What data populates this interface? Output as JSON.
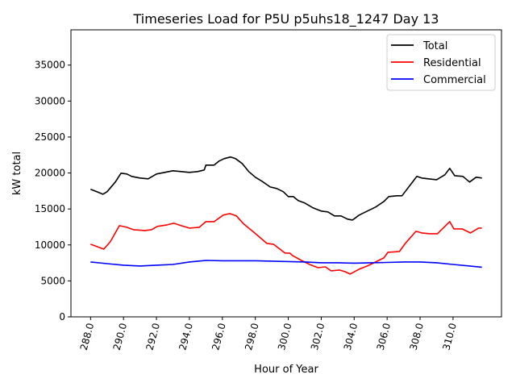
{
  "chart_data": {
    "type": "line",
    "title": "Timeseries Load for P5U p5uhs18_1247  Day 13",
    "xlabel": "Hour of Year",
    "ylabel": "kW total",
    "xlim": [
      286.81,
      312.94
    ],
    "ylim": [
      0,
      39900
    ],
    "grid": false,
    "legend_placement": "top-right",
    "xticks": [
      288,
      290,
      292,
      294,
      296,
      298,
      300,
      302,
      304,
      306,
      308,
      310
    ],
    "xtick_labels": [
      "288.0",
      "290.0",
      "292.0",
      "294.0",
      "296.0",
      "298.0",
      "300.0",
      "302.0",
      "304.0",
      "306.0",
      "308.0",
      "310.0"
    ],
    "yticks": [
      0,
      5000,
      10000,
      15000,
      20000,
      25000,
      30000,
      35000
    ],
    "ytick_labels": [
      "0",
      "5000",
      "10000",
      "15000",
      "20000",
      "25000",
      "30000",
      "35000"
    ],
    "series": [
      {
        "name": "Total",
        "color": "#000000",
        "x": [
          288,
          288.5,
          288.75,
          289,
          289.5,
          289.85,
          290.2,
          290.5,
          291,
          291.5,
          292,
          292.5,
          293,
          293.5,
          294,
          294.5,
          294.9,
          295,
          295.5,
          295.8,
          296.1,
          296.5,
          296.8,
          297.2,
          297.6,
          298,
          298.4,
          298.9,
          299.3,
          299.7,
          300,
          300.3,
          300.6,
          301,
          301.5,
          302,
          302.4,
          302.8,
          303.2,
          303.6,
          303.9,
          304.3,
          304.8,
          305.3,
          305.8,
          306.1,
          306.6,
          306.9,
          307.2,
          307.8,
          308.1,
          308.5,
          309,
          309.5,
          309.8,
          310.1,
          310.6,
          311,
          311.4,
          311.75
        ],
        "y": [
          17730,
          17280,
          17050,
          17390,
          18740,
          19970,
          19860,
          19520,
          19300,
          19190,
          19860,
          20080,
          20310,
          20200,
          20080,
          20200,
          20420,
          21090,
          21090,
          21650,
          21990,
          22220,
          21990,
          21320,
          20200,
          19410,
          18850,
          18060,
          17840,
          17390,
          16720,
          16720,
          16160,
          15820,
          15150,
          14700,
          14590,
          14030,
          14030,
          13580,
          13460,
          14140,
          14700,
          15260,
          16040,
          16720,
          16830,
          16830,
          17730,
          19520,
          19300,
          19190,
          19070,
          19750,
          20640,
          19630,
          19520,
          18740,
          19410,
          19300
        ]
      },
      {
        "name": "Residential",
        "color": "#ff0000",
        "x": [
          288,
          288.8,
          289.2,
          289.75,
          290.2,
          290.6,
          291.3,
          291.7,
          292.05,
          292.65,
          293.05,
          293.5,
          294,
          294.6,
          295,
          295.5,
          296.05,
          296.45,
          296.85,
          297.3,
          297.9,
          298.7,
          299.1,
          299.8,
          300.1,
          300.25,
          300.8,
          301.3,
          301.8,
          302.25,
          302.6,
          303.1,
          303.45,
          303.75,
          304.3,
          304.8,
          305.3,
          305.8,
          306.05,
          306.75,
          307.1,
          307.75,
          308.1,
          308.6,
          309.05,
          309.8,
          310.05,
          310.55,
          311.05,
          311.55,
          311.75
        ],
        "y": [
          10100,
          9420,
          10430,
          12680,
          12450,
          12120,
          12000,
          12120,
          12570,
          12790,
          13010,
          12680,
          12340,
          12450,
          13240,
          13240,
          14140,
          14360,
          14030,
          12900,
          11780,
          10210,
          10100,
          8860,
          8860,
          8530,
          7850,
          7290,
          6840,
          6950,
          6400,
          6510,
          6280,
          5950,
          6620,
          7070,
          7630,
          8190,
          8980,
          9090,
          10210,
          11890,
          11670,
          11560,
          11560,
          13240,
          12230,
          12230,
          11670,
          12340,
          12340
        ]
      },
      {
        "name": "Commercial",
        "color": "#0000ff",
        "x": [
          288,
          289,
          290,
          291,
          292,
          293,
          294,
          295,
          296,
          297,
          298,
          299,
          300,
          301,
          302,
          303,
          304,
          305,
          306,
          307,
          308,
          309,
          310,
          311,
          311.75
        ],
        "y": [
          7630,
          7400,
          7180,
          7070,
          7180,
          7290,
          7630,
          7850,
          7800,
          7800,
          7800,
          7740,
          7690,
          7630,
          7520,
          7520,
          7460,
          7520,
          7570,
          7630,
          7630,
          7520,
          7290,
          7070,
          6900
        ]
      }
    ]
  }
}
